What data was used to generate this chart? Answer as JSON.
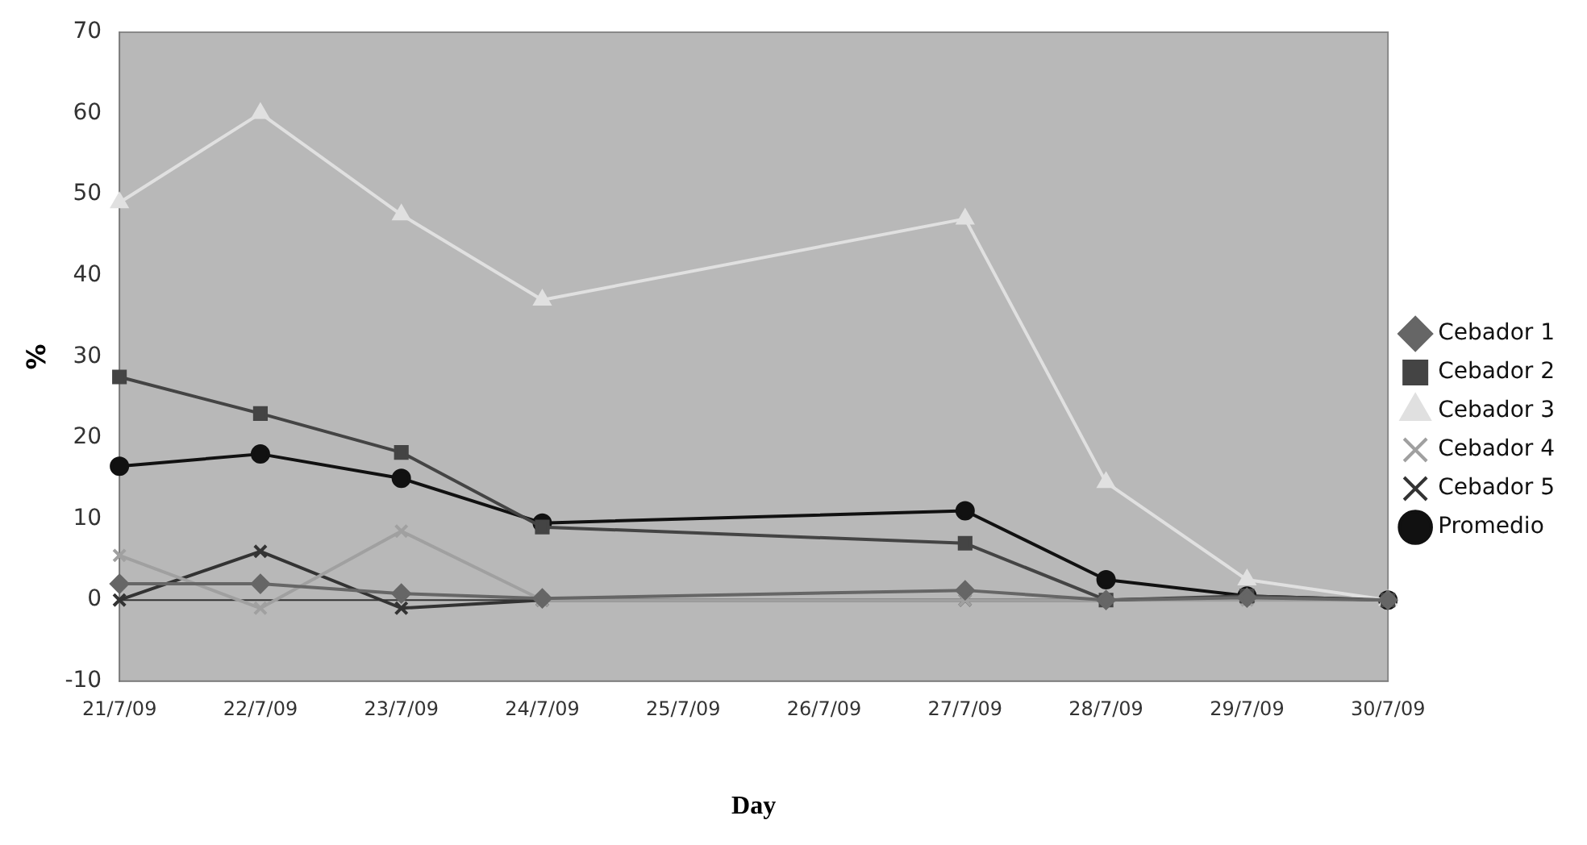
{
  "chart_data": {
    "type": "line",
    "categories": [
      "21/7/09",
      "22/7/09",
      "23/7/09",
      "24/7/09",
      "25/7/09",
      "26/7/09",
      "27/7/09",
      "28/7/09",
      "29/7/09",
      "30/7/09"
    ],
    "series": [
      {
        "name": "Cebador 1",
        "color": "#666666",
        "marker": "diamond",
        "values": [
          2,
          2,
          0.8,
          0.2,
          null,
          null,
          1.2,
          0,
          0.3,
          0
        ]
      },
      {
        "name": "Cebador 2",
        "color": "#444444",
        "marker": "square",
        "values": [
          27.5,
          23,
          18.2,
          9,
          null,
          null,
          7,
          0,
          0.5,
          0
        ]
      },
      {
        "name": "Cebador 3",
        "color": "#e0e0e0",
        "marker": "triangle",
        "values": [
          49,
          60,
          47.5,
          37,
          null,
          null,
          47,
          14.5,
          2.5,
          0
        ]
      },
      {
        "name": "Cebador 4",
        "color": "#a0a0a0",
        "marker": "cross",
        "values": [
          5.5,
          -1,
          8.5,
          0,
          null,
          null,
          0,
          0,
          0,
          0
        ]
      },
      {
        "name": "Cebador 5",
        "color": "#333333",
        "marker": "cross",
        "values": [
          0,
          6,
          -1,
          0,
          null,
          null,
          0,
          0,
          0.3,
          0
        ]
      },
      {
        "name": "Promedio",
        "color": "#111111",
        "marker": "circle",
        "values": [
          16.5,
          18,
          15,
          9.5,
          null,
          null,
          11,
          2.5,
          0.5,
          0
        ]
      }
    ],
    "ylabel": "%",
    "xlabel": "Day",
    "ylim": [
      -10,
      70
    ],
    "yticks": [
      -10,
      0,
      10,
      20,
      30,
      40,
      50,
      60,
      70
    ],
    "ref_lines": [
      {
        "axis": "y",
        "value": 0,
        "color": "#333333"
      }
    ],
    "grid": false,
    "legend": "right"
  }
}
